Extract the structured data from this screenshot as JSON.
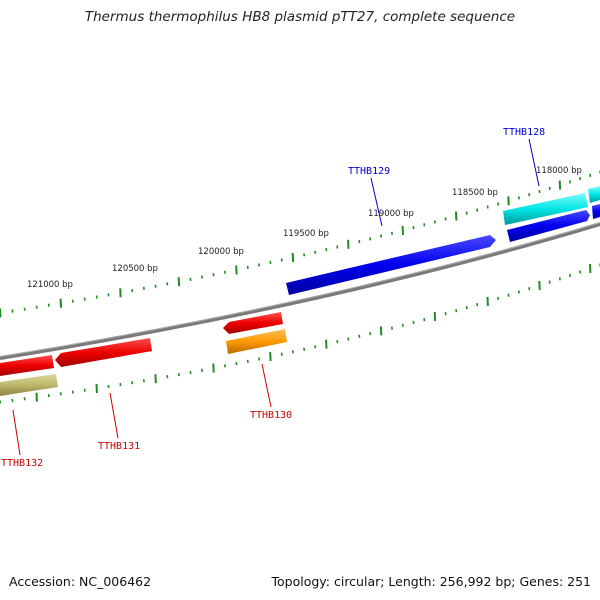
{
  "title": "Thermus thermophilus HB8 plasmid pTT27, complete sequence",
  "footer": {
    "accession": "Accession: NC_006462",
    "summary": "Topology: circular; Length: 256,992 bp; Genes: 251"
  },
  "scale_labels": [
    "121000 bp",
    "120500 bp",
    "120000 bp",
    "119500 bp",
    "119000 bp",
    "118500 bp",
    "118000 bp"
  ],
  "genes": [
    {
      "id": "TTHB128",
      "strand": "forward",
      "color": "#0000cc"
    },
    {
      "id": "TTHB129",
      "strand": "forward",
      "color": "#0000cc"
    },
    {
      "id": "TTHB130",
      "strand": "reverse",
      "color": "#cc0000"
    },
    {
      "id": "TTHB131",
      "strand": "reverse",
      "color": "#cc0000"
    },
    {
      "id": "TTHB132",
      "strand": "reverse",
      "color": "#cc0000"
    }
  ],
  "colors": {
    "forward_cds": "#0000ee",
    "reverse_cds": "#ee0000",
    "cyan_feature": "#00e5e5",
    "orange_feature": "#ff9900",
    "olive_feature": "#bdb76b",
    "backbone": "#808080",
    "ticks": "#228b22"
  }
}
